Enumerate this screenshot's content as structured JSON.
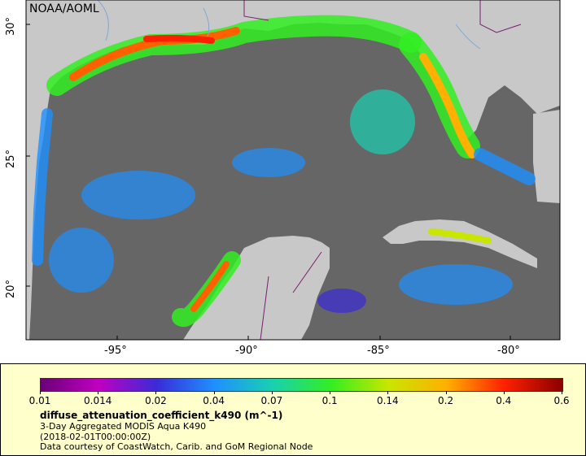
{
  "map": {
    "watermark": "NOAA/AOML",
    "lat_labels": [
      "30°",
      "25°",
      "20°"
    ],
    "lon_labels": [
      "-95°",
      "-90°",
      "-85°",
      "-80°"
    ],
    "colors": {
      "land": "#c8c8c8",
      "no_data": "#666666",
      "borders": "#7a1f6e",
      "rivers": "#7fa8d6"
    }
  },
  "legend": {
    "colorbar_ticks": [
      "0.01",
      "0.014",
      "0.02",
      "0.04",
      "0.07",
      "0.1",
      "0.14",
      "0.2",
      "0.4",
      "0.6"
    ],
    "colorbar_colors": [
      "#6a0077",
      "#c000c0",
      "#3a2bd9",
      "#1e90ff",
      "#19d0b0",
      "#33ee22",
      "#c8e600",
      "#ffb000",
      "#ff2000",
      "#8b0000"
    ],
    "variable_title": "diffuse_attenuation_coefficient_k490 (m^-1)",
    "line1": "3-Day Aggregated MODIS Aqua K490",
    "line2": "(2018-02-01T00:00:00Z)",
    "line3": "Data courtesy of CoastWatch, Carib. and GoM Regional Node"
  }
}
